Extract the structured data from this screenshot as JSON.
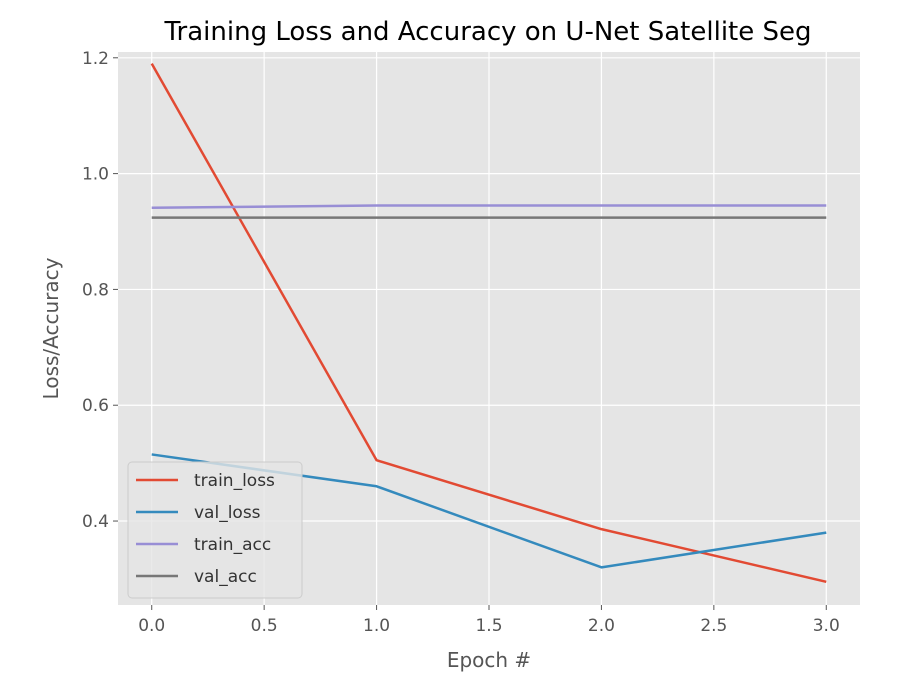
{
  "chart_data": {
    "type": "line",
    "title": "Training Loss and Accuracy on U-Net Satellite Seg",
    "xlabel": "Epoch #",
    "ylabel": "Loss/Accuracy",
    "xlim": [
      -0.15,
      3.15
    ],
    "ylim": [
      0.255,
      1.21
    ],
    "x": [
      0,
      1,
      2,
      3
    ],
    "xticks": [
      0.0,
      0.5,
      1.0,
      1.5,
      2.0,
      2.5,
      3.0
    ],
    "xtick_labels": [
      "0.0",
      "0.5",
      "1.0",
      "1.5",
      "2.0",
      "2.5",
      "3.0"
    ],
    "yticks": [
      0.4,
      0.6,
      0.8,
      1.0,
      1.2
    ],
    "ytick_labels": [
      "0.4",
      "0.6",
      "0.8",
      "1.0",
      "1.2"
    ],
    "grid": true,
    "legend_position": "lower-left",
    "series": [
      {
        "name": "train_loss",
        "color": "#E24A33",
        "values": [
          1.19,
          0.505,
          0.386,
          0.295
        ]
      },
      {
        "name": "val_loss",
        "color": "#348ABD",
        "values": [
          0.515,
          0.46,
          0.32,
          0.38
        ]
      },
      {
        "name": "train_acc",
        "color": "#988ED5",
        "values": [
          0.941,
          0.945,
          0.945,
          0.945
        ]
      },
      {
        "name": "val_acc",
        "color": "#777777",
        "values": [
          0.924,
          0.924,
          0.924,
          0.924
        ]
      }
    ]
  }
}
